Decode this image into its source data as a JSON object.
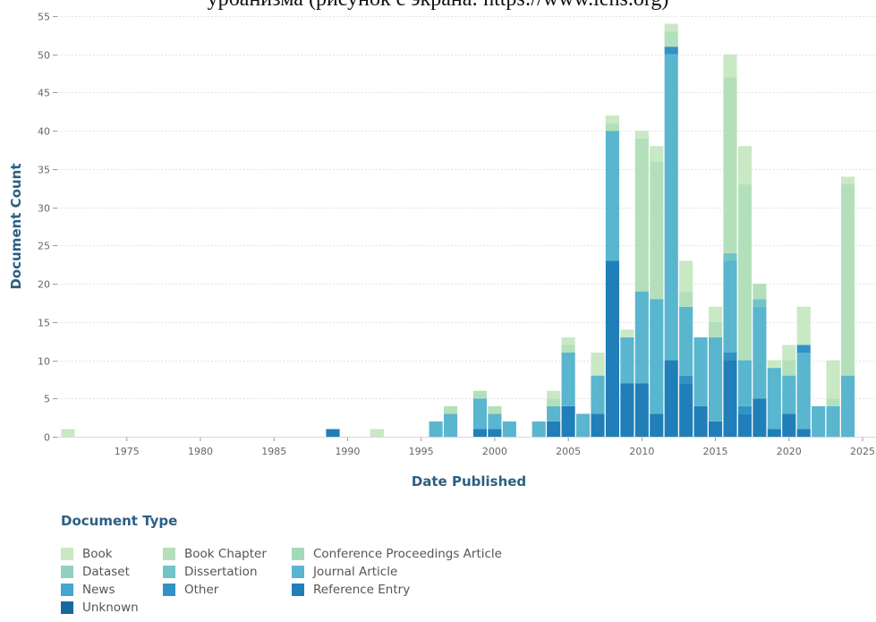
{
  "caption": "урбанизма (рисунок с экрана: https://www.lens.org)",
  "chart_data": {
    "type": "bar",
    "stacked": true,
    "xlabel": "Date Published",
    "ylabel": "Document Count",
    "xlim": [
      1971,
      2025
    ],
    "ylim": [
      0,
      55
    ],
    "yticks": [
      0,
      5,
      10,
      15,
      20,
      25,
      30,
      35,
      40,
      45,
      50,
      55
    ],
    "xticks": [
      1975,
      1980,
      1985,
      1990,
      1995,
      2000,
      2005,
      2010,
      2015,
      2020,
      2025
    ],
    "grid": true,
    "legend": {
      "title": "Document Type",
      "position": "bottom",
      "items": [
        {
          "name": "Book",
          "color": "#c9e8c4"
        },
        {
          "name": "Book Chapter",
          "color": "#b3e0bb"
        },
        {
          "name": "Conference Proceedings Article",
          "color": "#a3d9b8"
        },
        {
          "name": "Dataset",
          "color": "#8fd0c0"
        },
        {
          "name": "Dissertation",
          "color": "#72c4c7"
        },
        {
          "name": "Journal Article",
          "color": "#5ab5cf"
        },
        {
          "name": "News",
          "color": "#44a6d1"
        },
        {
          "name": "Other",
          "color": "#3193c5"
        },
        {
          "name": "Reference Entry",
          "color": "#207fb8"
        },
        {
          "name": "Unknown",
          "color": "#1767a0"
        }
      ]
    },
    "bars": [
      {
        "x": 1971,
        "segments": [
          {
            "type": "Book",
            "value": 1
          }
        ]
      },
      {
        "x": 1989,
        "segments": [
          {
            "type": "Reference Entry",
            "value": 1
          }
        ]
      },
      {
        "x": 1992,
        "segments": [
          {
            "type": "Book",
            "value": 1
          }
        ]
      },
      {
        "x": 1996,
        "segments": [
          {
            "type": "Journal Article",
            "value": 2
          }
        ]
      },
      {
        "x": 1997,
        "segments": [
          {
            "type": "Journal Article",
            "value": 3
          },
          {
            "type": "Book Chapter",
            "value": 1
          }
        ]
      },
      {
        "x": 1999,
        "segments": [
          {
            "type": "Reference Entry",
            "value": 1
          },
          {
            "type": "Journal Article",
            "value": 4
          },
          {
            "type": "Book Chapter",
            "value": 1
          }
        ]
      },
      {
        "x": 2000,
        "segments": [
          {
            "type": "Reference Entry",
            "value": 1
          },
          {
            "type": "Journal Article",
            "value": 2
          },
          {
            "type": "Book Chapter",
            "value": 1
          }
        ]
      },
      {
        "x": 2001,
        "segments": [
          {
            "type": "Journal Article",
            "value": 2
          }
        ]
      },
      {
        "x": 2003,
        "segments": [
          {
            "type": "Journal Article",
            "value": 2
          }
        ]
      },
      {
        "x": 2004,
        "segments": [
          {
            "type": "Reference Entry",
            "value": 2
          },
          {
            "type": "Journal Article",
            "value": 2
          },
          {
            "type": "Book Chapter",
            "value": 1
          },
          {
            "type": "Book",
            "value": 1
          }
        ]
      },
      {
        "x": 2005,
        "segments": [
          {
            "type": "Reference Entry",
            "value": 4
          },
          {
            "type": "Journal Article",
            "value": 7
          },
          {
            "type": "Book Chapter",
            "value": 1
          },
          {
            "type": "Book",
            "value": 1
          }
        ]
      },
      {
        "x": 2006,
        "segments": [
          {
            "type": "Journal Article",
            "value": 3
          }
        ]
      },
      {
        "x": 2007,
        "segments": [
          {
            "type": "Reference Entry",
            "value": 3
          },
          {
            "type": "Journal Article",
            "value": 5
          },
          {
            "type": "Book",
            "value": 3
          }
        ]
      },
      {
        "x": 2008,
        "segments": [
          {
            "type": "Reference Entry",
            "value": 23
          },
          {
            "type": "Journal Article",
            "value": 17
          },
          {
            "type": "Book Chapter",
            "value": 1
          },
          {
            "type": "Book",
            "value": 1
          }
        ]
      },
      {
        "x": 2009,
        "segments": [
          {
            "type": "Reference Entry",
            "value": 7
          },
          {
            "type": "Journal Article",
            "value": 6
          },
          {
            "type": "Book",
            "value": 1
          }
        ]
      },
      {
        "x": 2010,
        "segments": [
          {
            "type": "Reference Entry",
            "value": 7
          },
          {
            "type": "Journal Article",
            "value": 12
          },
          {
            "type": "Book Chapter",
            "value": 20
          },
          {
            "type": "Book",
            "value": 1
          }
        ]
      },
      {
        "x": 2011,
        "segments": [
          {
            "type": "Reference Entry",
            "value": 3
          },
          {
            "type": "Journal Article",
            "value": 15
          },
          {
            "type": "Book Chapter",
            "value": 18
          },
          {
            "type": "Book",
            "value": 2
          }
        ]
      },
      {
        "x": 2012,
        "segments": [
          {
            "type": "Reference Entry",
            "value": 10
          },
          {
            "type": "Journal Article",
            "value": 40
          },
          {
            "type": "Other",
            "value": 1
          },
          {
            "type": "Book Chapter",
            "value": 2
          },
          {
            "type": "Book",
            "value": 1
          }
        ]
      },
      {
        "x": 2013,
        "segments": [
          {
            "type": "Reference Entry",
            "value": 7
          },
          {
            "type": "Other",
            "value": 1
          },
          {
            "type": "Journal Article",
            "value": 9
          },
          {
            "type": "Book Chapter",
            "value": 2
          },
          {
            "type": "Book",
            "value": 4
          }
        ]
      },
      {
        "x": 2014,
        "segments": [
          {
            "type": "Reference Entry",
            "value": 4
          },
          {
            "type": "Journal Article",
            "value": 9
          }
        ]
      },
      {
        "x": 2015,
        "segments": [
          {
            "type": "Reference Entry",
            "value": 2
          },
          {
            "type": "Journal Article",
            "value": 11
          },
          {
            "type": "Book Chapter",
            "value": 2
          },
          {
            "type": "Book",
            "value": 2
          }
        ]
      },
      {
        "x": 2016,
        "segments": [
          {
            "type": "Reference Entry",
            "value": 10
          },
          {
            "type": "Other",
            "value": 1
          },
          {
            "type": "Journal Article",
            "value": 12
          },
          {
            "type": "Dissertation",
            "value": 1
          },
          {
            "type": "Book Chapter",
            "value": 23
          },
          {
            "type": "Book",
            "value": 3
          }
        ]
      },
      {
        "x": 2017,
        "segments": [
          {
            "type": "Reference Entry",
            "value": 3
          },
          {
            "type": "Other",
            "value": 1
          },
          {
            "type": "Journal Article",
            "value": 6
          },
          {
            "type": "Book Chapter",
            "value": 23
          },
          {
            "type": "Book",
            "value": 5
          }
        ]
      },
      {
        "x": 2018,
        "segments": [
          {
            "type": "Reference Entry",
            "value": 5
          },
          {
            "type": "Journal Article",
            "value": 12
          },
          {
            "type": "Dissertation",
            "value": 1
          },
          {
            "type": "Book Chapter",
            "value": 2
          }
        ]
      },
      {
        "x": 2019,
        "segments": [
          {
            "type": "Reference Entry",
            "value": 1
          },
          {
            "type": "Journal Article",
            "value": 8
          },
          {
            "type": "Book",
            "value": 1
          }
        ]
      },
      {
        "x": 2020,
        "segments": [
          {
            "type": "Reference Entry",
            "value": 3
          },
          {
            "type": "Journal Article",
            "value": 5
          },
          {
            "type": "Book Chapter",
            "value": 2
          },
          {
            "type": "Book",
            "value": 2
          }
        ]
      },
      {
        "x": 2021,
        "segments": [
          {
            "type": "Reference Entry",
            "value": 1
          },
          {
            "type": "Journal Article",
            "value": 10
          },
          {
            "type": "Other",
            "value": 1
          },
          {
            "type": "Book",
            "value": 5
          }
        ]
      },
      {
        "x": 2022,
        "segments": [
          {
            "type": "Journal Article",
            "value": 4
          }
        ]
      },
      {
        "x": 2023,
        "segments": [
          {
            "type": "Journal Article",
            "value": 4
          },
          {
            "type": "Book Chapter",
            "value": 1
          },
          {
            "type": "Book",
            "value": 5
          }
        ]
      },
      {
        "x": 2024,
        "segments": [
          {
            "type": "Journal Article",
            "value": 8
          },
          {
            "type": "Book Chapter",
            "value": 25
          },
          {
            "type": "Book",
            "value": 1
          }
        ]
      }
    ]
  }
}
